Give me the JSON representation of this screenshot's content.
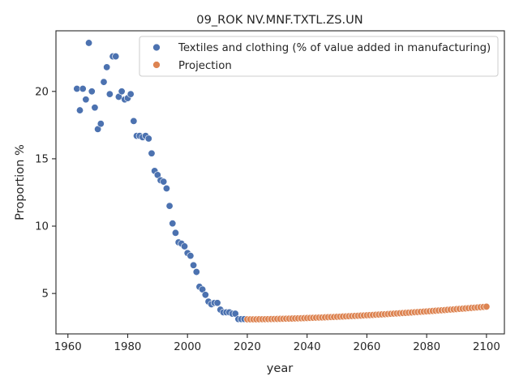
{
  "chart_data": {
    "type": "scatter",
    "title": "09_ROK NV.MNF.TXTL.ZS.UN",
    "xlabel": "year",
    "ylabel": "Proportion %",
    "xlim": [
      1956,
      2106
    ],
    "ylim": [
      2.0,
      24.5
    ],
    "xticks": [
      1960,
      1980,
      2000,
      2020,
      2040,
      2060,
      2080,
      2100
    ],
    "yticks": [
      5,
      10,
      15,
      20
    ],
    "grid": false,
    "legend_position": "top-right",
    "series": [
      {
        "name": "Textiles and clothing (% of value added in manufacturing)",
        "color": "#4c72b0",
        "x": [
          1963,
          1964,
          1965,
          1966,
          1967,
          1968,
          1969,
          1970,
          1971,
          1972,
          1973,
          1974,
          1975,
          1976,
          1977,
          1978,
          1979,
          1980,
          1981,
          1982,
          1983,
          1984,
          1985,
          1986,
          1987,
          1988,
          1989,
          1990,
          1991,
          1992,
          1993,
          1994,
          1995,
          1996,
          1997,
          1998,
          1999,
          2000,
          2001,
          2002,
          2003,
          2004,
          2005,
          2006,
          2007,
          2008,
          2009,
          2010,
          2011,
          2012,
          2013,
          2014,
          2015,
          2016,
          2017,
          2018,
          2019
        ],
        "y": [
          20.2,
          18.6,
          20.2,
          19.4,
          23.6,
          20.0,
          18.8,
          17.2,
          17.6,
          20.7,
          21.8,
          19.8,
          22.6,
          22.6,
          19.6,
          20.0,
          19.4,
          19.5,
          19.8,
          17.8,
          16.7,
          16.7,
          16.6,
          16.7,
          16.5,
          15.4,
          14.1,
          13.8,
          13.4,
          13.3,
          12.8,
          11.5,
          10.2,
          9.5,
          8.8,
          8.7,
          8.5,
          8.0,
          7.8,
          7.1,
          6.6,
          5.5,
          5.3,
          4.9,
          4.4,
          4.2,
          4.3,
          4.3,
          3.8,
          3.6,
          3.6,
          3.6,
          3.5,
          3.5,
          3.1,
          3.1,
          3.1
        ]
      },
      {
        "name": "Projection",
        "color": "#dd8452",
        "x_start": 2020,
        "x_end": 2100,
        "y_start": 3.08,
        "y_min": 3.07,
        "y_end": 4.02
      }
    ]
  }
}
